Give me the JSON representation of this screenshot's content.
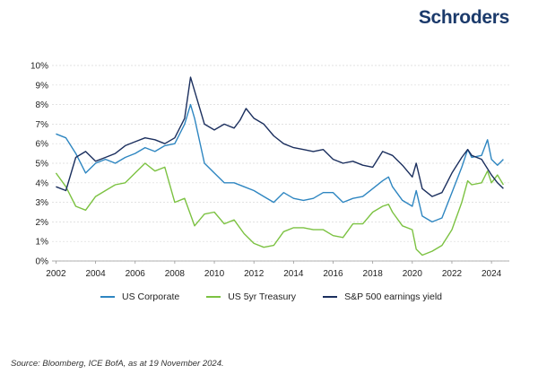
{
  "brand": {
    "name": "Schroders"
  },
  "source": "Source: Bloomberg, ICE BofA, as at 19 November 2024.",
  "chart_data": {
    "type": "line",
    "title": "",
    "xlabel": "",
    "ylabel": "",
    "xlim": [
      2001.8,
      2024.9
    ],
    "ylim": [
      0,
      10
    ],
    "grid": true,
    "legend_position": "bottom",
    "yticks": [
      "0%",
      "1%",
      "2%",
      "3%",
      "4%",
      "5%",
      "6%",
      "7%",
      "8%",
      "9%",
      "10%"
    ],
    "xticks": [
      "2002",
      "2004",
      "2006",
      "2008",
      "2010",
      "2012",
      "2014",
      "2016",
      "2018",
      "2020",
      "2022",
      "2024"
    ],
    "series": [
      {
        "name": "US Corporate",
        "color": "#2e86c1",
        "x": [
          2002.0,
          2002.5,
          2003.0,
          2003.5,
          2004.0,
          2004.5,
          2005.0,
          2005.5,
          2006.0,
          2006.5,
          2007.0,
          2007.5,
          2008.0,
          2008.5,
          2008.8,
          2009.0,
          2009.5,
          2010.0,
          2010.5,
          2011.0,
          2011.5,
          2012.0,
          2012.5,
          2013.0,
          2013.5,
          2014.0,
          2014.5,
          2015.0,
          2015.5,
          2016.0,
          2016.5,
          2017.0,
          2017.5,
          2018.0,
          2018.5,
          2018.8,
          2019.0,
          2019.5,
          2020.0,
          2020.2,
          2020.5,
          2021.0,
          2021.5,
          2022.0,
          2022.5,
          2022.8,
          2023.0,
          2023.5,
          2023.8,
          2024.0,
          2024.3,
          2024.6
        ],
        "values": [
          6.5,
          6.3,
          5.5,
          4.5,
          5.0,
          5.2,
          5.0,
          5.3,
          5.5,
          5.8,
          5.6,
          5.9,
          6.0,
          7.0,
          8.0,
          7.3,
          5.0,
          4.5,
          4.0,
          4.0,
          3.8,
          3.6,
          3.3,
          3.0,
          3.5,
          3.2,
          3.1,
          3.2,
          3.5,
          3.5,
          3.0,
          3.2,
          3.3,
          3.7,
          4.1,
          4.3,
          3.8,
          3.1,
          2.8,
          3.6,
          2.3,
          2.0,
          2.2,
          3.5,
          4.8,
          5.7,
          5.3,
          5.4,
          6.2,
          5.2,
          4.9,
          5.2
        ]
      },
      {
        "name": "US 5yr Treasury",
        "color": "#7cc242",
        "x": [
          2002.0,
          2002.5,
          2003.0,
          2003.5,
          2004.0,
          2004.5,
          2005.0,
          2005.5,
          2006.0,
          2006.5,
          2007.0,
          2007.5,
          2008.0,
          2008.5,
          2009.0,
          2009.5,
          2010.0,
          2010.5,
          2011.0,
          2011.5,
          2012.0,
          2012.5,
          2013.0,
          2013.5,
          2014.0,
          2014.5,
          2015.0,
          2015.5,
          2016.0,
          2016.5,
          2017.0,
          2017.5,
          2018.0,
          2018.5,
          2018.8,
          2019.0,
          2019.5,
          2020.0,
          2020.2,
          2020.5,
          2021.0,
          2021.5,
          2022.0,
          2022.5,
          2022.8,
          2023.0,
          2023.5,
          2023.8,
          2024.0,
          2024.3,
          2024.6
        ],
        "values": [
          4.5,
          3.8,
          2.8,
          2.6,
          3.3,
          3.6,
          3.9,
          4.0,
          4.5,
          5.0,
          4.6,
          4.8,
          3.0,
          3.2,
          1.8,
          2.4,
          2.5,
          1.9,
          2.1,
          1.4,
          0.9,
          0.7,
          0.8,
          1.5,
          1.7,
          1.7,
          1.6,
          1.6,
          1.3,
          1.2,
          1.9,
          1.9,
          2.5,
          2.8,
          2.9,
          2.5,
          1.8,
          1.6,
          0.6,
          0.3,
          0.5,
          0.8,
          1.6,
          3.0,
          4.1,
          3.9,
          4.0,
          4.6,
          4.0,
          4.4,
          3.9
        ]
      },
      {
        "name": "S&P 500 earnings yield",
        "color": "#1b2f5e",
        "x": [
          2002.0,
          2002.5,
          2003.0,
          2003.5,
          2004.0,
          2004.5,
          2005.0,
          2005.5,
          2006.0,
          2006.5,
          2007.0,
          2007.5,
          2008.0,
          2008.5,
          2008.8,
          2009.0,
          2009.5,
          2010.0,
          2010.5,
          2011.0,
          2011.3,
          2011.6,
          2012.0,
          2012.5,
          2013.0,
          2013.5,
          2014.0,
          2014.5,
          2015.0,
          2015.5,
          2016.0,
          2016.5,
          2017.0,
          2017.5,
          2018.0,
          2018.5,
          2019.0,
          2019.5,
          2020.0,
          2020.2,
          2020.5,
          2021.0,
          2021.5,
          2022.0,
          2022.5,
          2022.8,
          2023.0,
          2023.5,
          2024.0,
          2024.3,
          2024.6
        ],
        "values": [
          3.8,
          3.6,
          5.3,
          5.6,
          5.1,
          5.3,
          5.5,
          5.9,
          6.1,
          6.3,
          6.2,
          6.0,
          6.3,
          7.3,
          9.4,
          8.7,
          7.0,
          6.7,
          7.0,
          6.8,
          7.2,
          7.8,
          7.3,
          7.0,
          6.4,
          6.0,
          5.8,
          5.7,
          5.6,
          5.7,
          5.2,
          5.0,
          5.1,
          4.9,
          4.8,
          5.6,
          5.4,
          4.9,
          4.3,
          5.0,
          3.7,
          3.3,
          3.5,
          4.5,
          5.3,
          5.7,
          5.4,
          5.2,
          4.4,
          4.0,
          3.7
        ]
      }
    ]
  }
}
